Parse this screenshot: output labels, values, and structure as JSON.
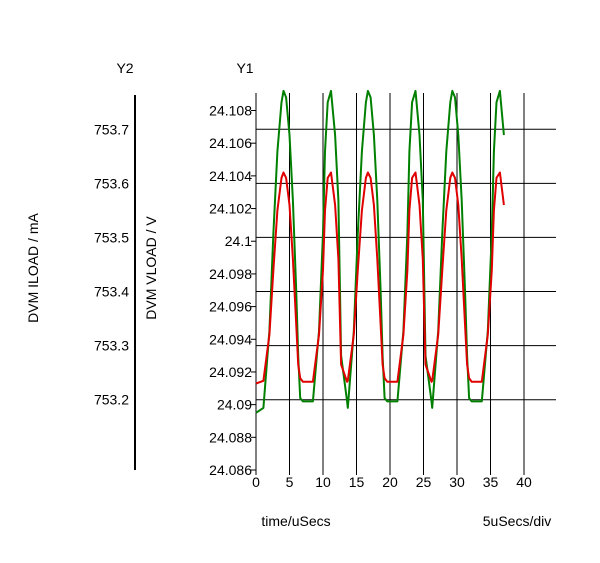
{
  "axis_header_y2": "Y2",
  "axis_header_y1": "Y1",
  "x_axis_label": "time/uSecs",
  "x_scale_label": "5uSecs/div",
  "y2_axis_label": "DVM ILOAD / mA",
  "y1_axis_label": "DVM VLOAD / V",
  "colors": {
    "series_y1": "#008000",
    "series_y2": "#e00000",
    "grid": "#000000"
  },
  "chart_data": {
    "type": "line",
    "title": "",
    "xlabel": "time/uSecs",
    "xlim": [
      0,
      40
    ],
    "x_ticks": [
      0,
      5,
      10,
      15,
      20,
      25,
      30,
      35,
      40
    ],
    "y1": {
      "label": "DVM VLOAD / V",
      "lim": [
        24.086,
        24.1095
      ],
      "ticks": [
        24.086,
        24.088,
        24.09,
        24.092,
        24.094,
        24.096,
        24.098,
        24.1,
        24.102,
        24.104,
        24.106,
        24.108
      ],
      "tick_labels": [
        "24.086",
        "24.088",
        "24.09",
        "24.092",
        "24.094",
        "24.096",
        "24.098",
        "24.1",
        "24.102",
        "24.104",
        "24.106",
        "24.108"
      ]
    },
    "y2": {
      "label": "DVM ILOAD / mA",
      "lim": [
        753.07,
        753.78
      ],
      "ticks": [
        753.2,
        753.3,
        753.4,
        753.5,
        753.6,
        753.7
      ],
      "tick_labels": [
        "753.2",
        "753.3",
        "753.4",
        "753.5",
        "753.6",
        "753.7"
      ]
    },
    "grid": true,
    "series": [
      {
        "axis": "y1",
        "color": "#008000",
        "x": [
          0,
          1.1,
          2.0,
          2.6,
          3.2,
          3.8,
          4.1,
          4.5,
          5.0,
          5.5,
          6.0,
          6.3,
          6.6,
          7.0,
          7.4,
          8.5,
          9.4,
          10.0,
          10.3,
          10.7,
          11.2,
          11.8,
          12.3,
          12.7,
          13.6
        ],
        "values": [
          24.0895,
          24.0898,
          24.0945,
          24.1005,
          24.1055,
          24.1085,
          24.1092,
          24.1088,
          24.1065,
          24.1025,
          24.097,
          24.093,
          24.0904,
          24.0902,
          24.0902,
          24.0902,
          24.0945,
          24.1005,
          24.1055,
          24.1085,
          24.1092,
          24.1065,
          24.1025,
          24.093,
          24.0902
        ]
      },
      {
        "axis": "y2",
        "color": "#e00000",
        "x": [
          0,
          1.1,
          2.0,
          2.6,
          3.2,
          3.8,
          4.1,
          4.5,
          5.0,
          5.5,
          6.0,
          6.3,
          6.6,
          7.0,
          7.4,
          8.5,
          9.4,
          10.0,
          10.3,
          10.7,
          11.2,
          11.8,
          12.3,
          12.7,
          13.6
        ],
        "values": [
          753.23,
          753.235,
          753.32,
          753.44,
          753.55,
          753.61,
          753.62,
          753.61,
          753.56,
          753.46,
          753.34,
          753.265,
          753.24,
          753.233,
          753.233,
          753.233,
          753.32,
          753.44,
          753.55,
          753.61,
          753.62,
          753.56,
          753.46,
          753.265,
          753.233
        ]
      }
    ]
  }
}
